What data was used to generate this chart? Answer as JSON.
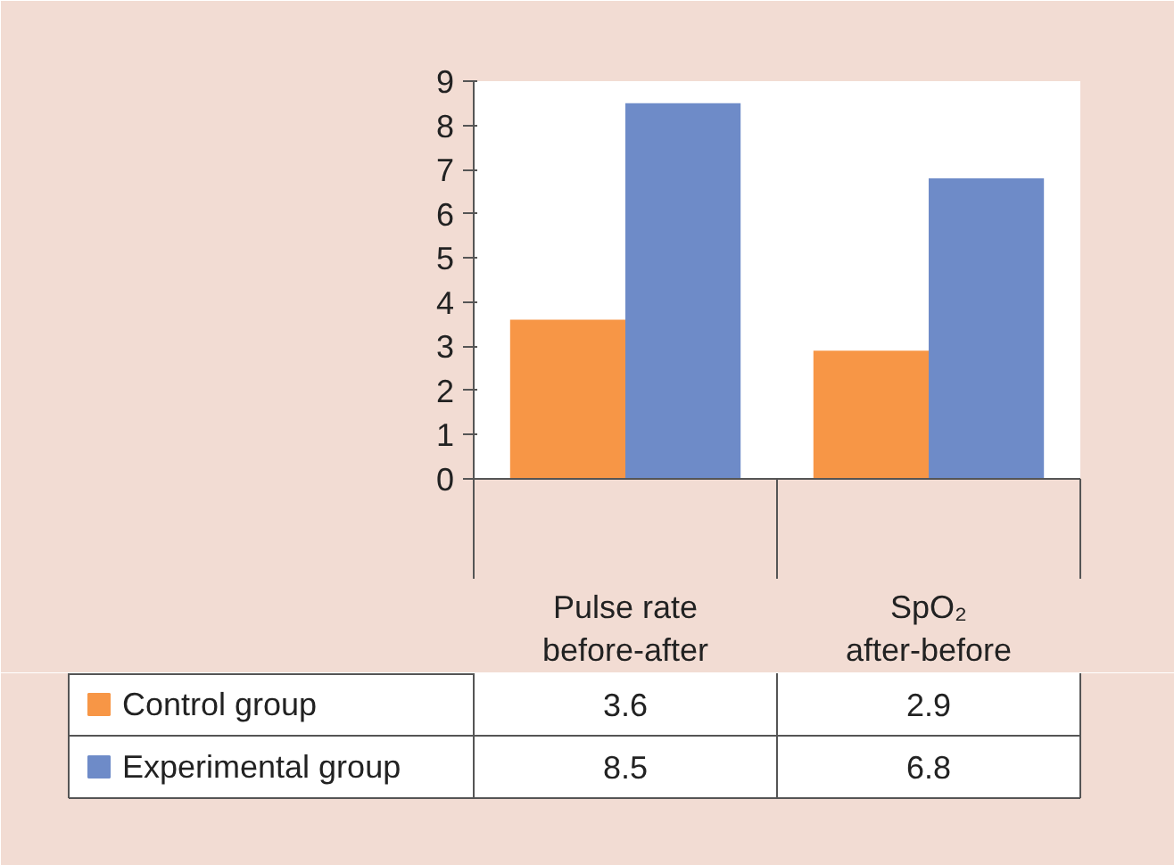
{
  "chart_data": {
    "type": "bar",
    "categories": [
      "Pulse rate\nbefore-after",
      "SpO₂\nafter-before"
    ],
    "series": [
      {
        "name": "Control group",
        "color": "#f79646",
        "values": [
          3.6,
          2.9
        ]
      },
      {
        "name": "Experimental group",
        "color": "#6e8bc8",
        "values": [
          8.5,
          6.8
        ]
      }
    ],
    "ylim": [
      0,
      9
    ],
    "yticks": [
      0,
      1,
      2,
      3,
      4,
      5,
      6,
      7,
      8,
      9
    ],
    "grid": false,
    "legend": "bottom",
    "data_labels": true
  }
}
